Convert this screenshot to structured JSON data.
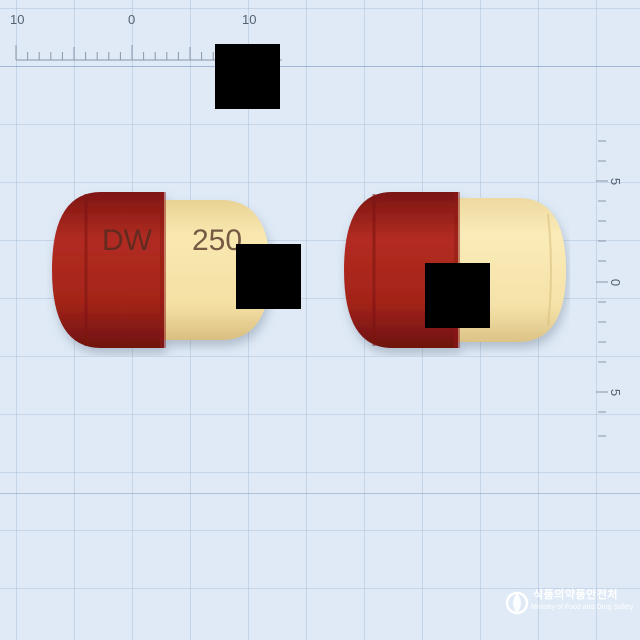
{
  "ruler": {
    "top_labels": [
      "10",
      "0",
      "10"
    ],
    "right_labels": [
      "5",
      "0",
      "5"
    ]
  },
  "capsules": [
    {
      "imprint_left": "DW",
      "imprint_right": "250",
      "cap_color": "#a8201c",
      "body_color": "#f6e3a6"
    },
    {
      "imprint_left": "",
      "imprint_right": "",
      "cap_color": "#a8201c",
      "body_color": "#f6e3a6"
    }
  ],
  "logo": {
    "korean": "식품의약품안전처",
    "english": "Ministry of Food and Drug Safety"
  }
}
